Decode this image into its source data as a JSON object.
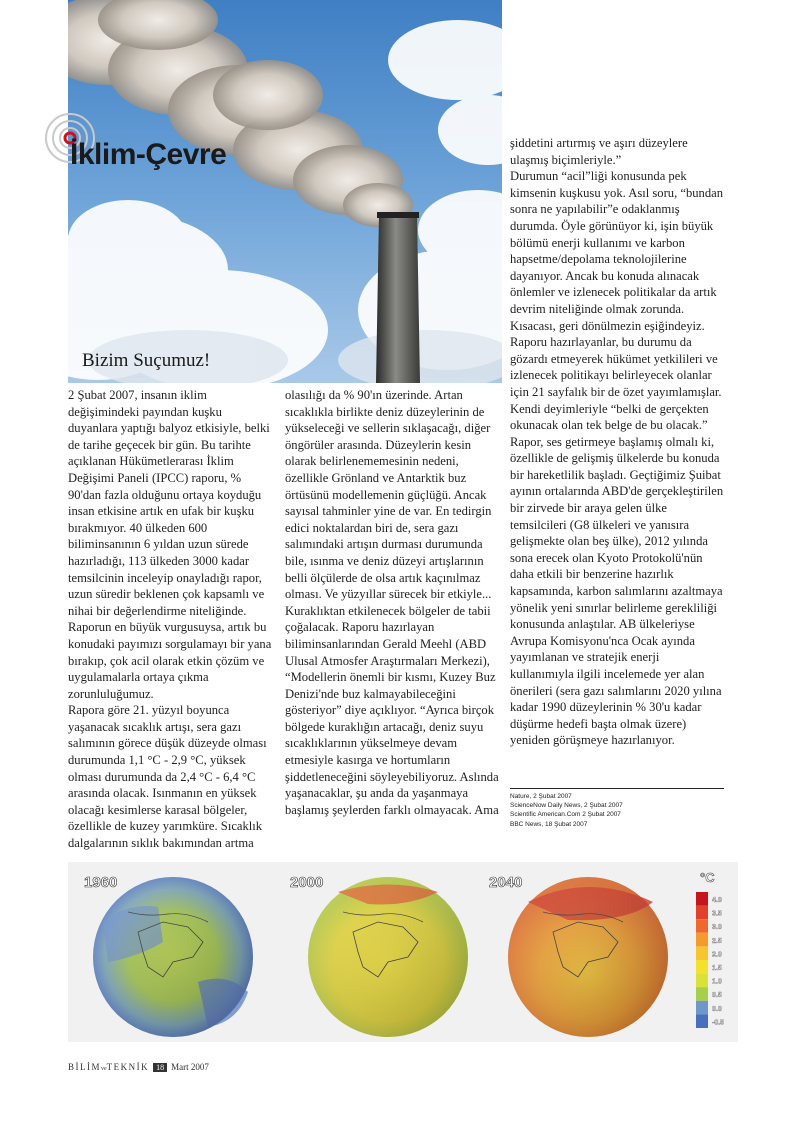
{
  "section": {
    "title": "İklim-Çevre"
  },
  "article": {
    "title": "Bizim Suçumuz!",
    "col1": [
      "2 Şubat 2007, insanın iklim değişimindeki payından kuşku duyanlara yaptığı balyoz etkisiyle, belki de tarihe geçecek bir gün. Bu tarihte açıklanan Hükümetlerarası İklim Değişimi Paneli (IPCC) raporu, % 90'dan fazla olduğunu ortaya koyduğu insan etkisine artık en ufak bir kuşku bırakmıyor. 40 ülkeden 600 biliminsanının 6 yıldan uzun sürede hazırladığı, 113 ülkeden 3000 kadar temsilcinin inceleyip onayladığı rapor, uzun süredir beklenen çok kapsamlı ve nihai bir değerlendirme niteliğinde. Raporun en büyük vurgusuysa, artık bu konudaki payımızı sorgulamayı bir yana bırakıp, çok acil olarak etkin çözüm ve uygulamalarla ortaya çıkma zorunluluğumuz.",
      "Rapora göre 21. yüzyıl boyunca yaşanacak sıcaklık artışı, sera gazı salımının görece düşük düzeyde olması durumunda 1,1 °C - 2,9 °C, yüksek olması durumunda da 2,4 °C - 6,4 °C arasında olacak. Isınmanın en yüksek olacağı kesimlerse karasal bölgeler, özellikle de kuzey yarımküre. Sıcaklık dalgalarının sıklık bakımından artma"
    ],
    "col2": [
      "olasılığı da % 90'ın üzerinde. Artan sıcaklıkla birlikte deniz düzeylerinin de yükseleceği ve sellerin sıklaşacağı, diğer öngörüler arasında. Düzeylerin kesin olarak belirlenememesinin nedeni, özellikle Grönland ve Antarktik buz örtüsünü modellemenin güçlüğü. Ancak sayısal tahminler yine de var. En tedirgin edici noktalardan biri de, sera gazı salımındaki artışın durması durumunda bile, ısınma ve deniz düzeyi artışlarının belli ölçülerde de olsa artık kaçınılmaz olması. Ve yüzyıllar sürecek bir etkiyle... Kuraklıktan etkilenecek bölgeler de tabii çoğalacak. Raporu hazırlayan biliminsanlarından Gerald Meehl (ABD Ulusal Atmosfer Araştırmaları Merkezi), “Modellerin önemli bir kısmı, Kuzey Buz Denizi'nde buz kalmayabileceğini gösteriyor” diye açıklıyor. “Ayrıca birçok bölgede kuraklığın artacağı, deniz suyu sıcaklıklarının yükselmeye devam etmesiyle kasırga ve hortumların şiddetleneceğini söyleyebiliyoruz. Aslında yaşanacaklar, şu anda da yaşanmaya başlamış şeylerden farklı olmayacak. Ama"
    ],
    "col3": [
      "şiddetini artırmış ve aşırı düzeylere ulaşmış biçimleriyle.”",
      "Durumun “acil”liği konusunda pek kimsenin kuşkusu yok. Asıl soru, “bundan sonra ne yapılabilir”e odaklanmış durumda. Öyle görünüyor ki, işin büyük bölümü enerji kullanımı ve karbon hapsetme/depolama teknolojilerine dayanıyor. Ancak bu konuda alınacak önlemler ve izlenecek politikalar da artık devrim niteliğinde olmak zorunda. Kısacası, geri dönülmezin eşiğindeyiz. Raporu hazırlayanlar, bu durumu da gözardı etmeyerek hükümet yetkilileri ve izlenecek politikayı belirleyecek olanlar için 21 sayfalık bir de özet yayımlamışlar. Kendi deyimleriyle “belki de gerçekten okunacak olan tek belge de bu olacak.” Rapor, ses getirmeye başlamış olmalı ki, özellikle de gelişmiş ülkelerde bu konuda bir hareketlilik başladı. Geçtiğimiz Şuibat ayının ortalarında ABD'de gerçekleştirilen bir zirvede bir araya gelen ülke temsilcileri (G8 ülkeleri ve yanısıra gelişmekte olan beş ülke), 2012 yılında sona erecek olan Kyoto Protokolü'nün daha etkili bir benzerine hazırlık kapsamında, karbon salımlarını azaltmaya yönelik yeni sınırlar belirleme gerekliliği konusunda anlaştılar. AB ülkeleriyse Avrupa Komisyonu'nca Ocak ayında yayımlanan ve stratejik enerji kullanımıyla ilgili incelemede yer alan önerileri (sera gazı salımlarını 2020 yılına kadar 1990 düzeylerinin % 30'u kadar düşürme hedefi başta olmak üzere) yeniden görüşmeye hazırlanıyor."
    ]
  },
  "references": [
    "Nature, 2 Şubat 2007",
    "ScienceNow Daily News, 2 Şubat 2007",
    "Scientific American.Com 2 Şubat 2007",
    "BBC News, 18 Şubat 2007"
  ],
  "figure": {
    "years": [
      "1960",
      "2000",
      "2040"
    ],
    "unit": "°C",
    "scale": [
      "4.0",
      "3.5",
      "3.0",
      "2.5",
      "2.0",
      "1.5",
      "1.0",
      "0.5",
      "0.0",
      "-0.5"
    ],
    "scale_colors": [
      "#c4161c",
      "#e0412a",
      "#ee6a2c",
      "#f59a2e",
      "#f8c531",
      "#f4e12f",
      "#d9e23a",
      "#a8cf4a",
      "#6f97c8",
      "#4a6fbe"
    ]
  },
  "footer": {
    "brand_left": "BİLİM",
    "brand_mid": "ve",
    "brand_right": "TEKNİK",
    "page": "18",
    "issue": "Mart 2007"
  }
}
